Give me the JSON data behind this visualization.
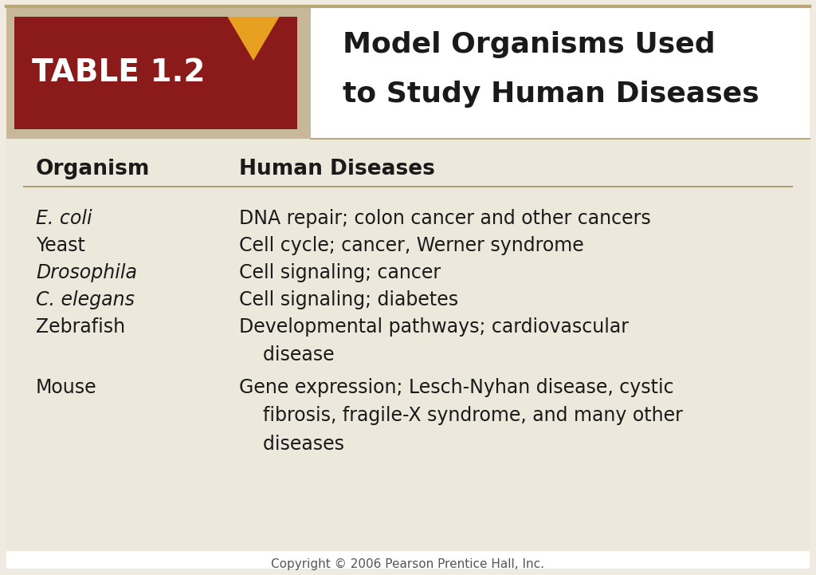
{
  "bg_outer": "#f0ebe0",
  "bg_body": "#ede8dc",
  "bg_header_tan": "#c8b89a",
  "bg_header_white": "#ffffff",
  "bg_red": "#8b1a1a",
  "title_line1": "Model Organisms Used",
  "title_line2": "to Study Human Diseases",
  "table_label": "TABLE 1.2",
  "col1_header": "Organism",
  "col2_header": "Human Diseases",
  "rows": [
    {
      "org": "E. coli",
      "org_italic": true,
      "disease": "DNA repair; colon cancer and other cancers"
    },
    {
      "org": "Yeast",
      "org_italic": false,
      "disease": "Cell cycle; cancer, Werner syndrome"
    },
    {
      "org": "Drosophila",
      "org_italic": true,
      "disease": "Cell signaling; cancer"
    },
    {
      "org": "C. elegans",
      "org_italic": true,
      "disease": "Cell signaling; diabetes"
    },
    {
      "org": "Zebrafish",
      "org_italic": false,
      "disease": "Developmental pathways; cardiovascular\n    disease"
    },
    {
      "org": "Mouse",
      "org_italic": false,
      "disease": "Gene expression; Lesch-Nyhan disease, cystic\n    fibrosis, fragile-X syndrome, and many other\n    diseases"
    }
  ],
  "copyright": "Copyright © 2006 Pearson Prentice Hall, Inc.",
  "header_text_color": "#ffffff",
  "body_text_color": "#1a1a1a",
  "divider_color": "#b0a07a",
  "arrow_color": "#e8a020",
  "border_line_color": "#b8a878"
}
